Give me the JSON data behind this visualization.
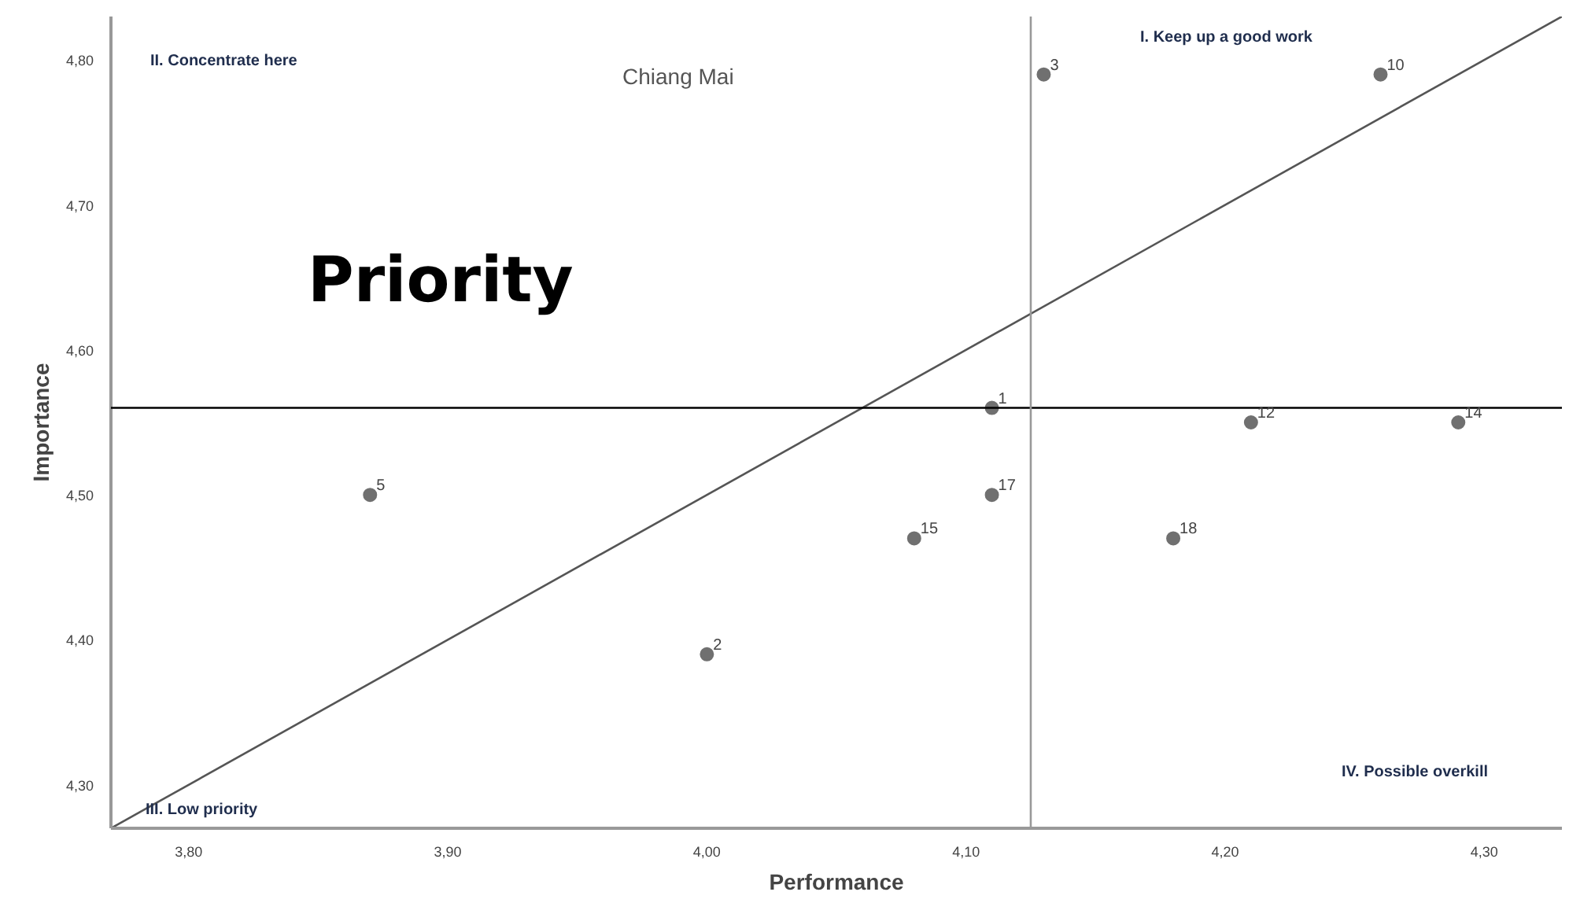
{
  "chart_data": {
    "type": "scatter",
    "title": "Chiang Mai",
    "xlabel": "Performance",
    "ylabel": "Importance",
    "xlim": [
      3.77,
      4.33
    ],
    "ylim": [
      4.27,
      4.83
    ],
    "xticks": [
      {
        "value": 3.8,
        "label": "3,80"
      },
      {
        "value": 3.9,
        "label": "3,90"
      },
      {
        "value": 4.0,
        "label": "4,00"
      },
      {
        "value": 4.1,
        "label": "4,10"
      },
      {
        "value": 4.2,
        "label": "4,20"
      },
      {
        "value": 4.3,
        "label": "4,30"
      }
    ],
    "yticks": [
      {
        "value": 4.3,
        "label": "4,30"
      },
      {
        "value": 4.4,
        "label": "4,40"
      },
      {
        "value": 4.5,
        "label": "4,50"
      },
      {
        "value": 4.6,
        "label": "4,60"
      },
      {
        "value": 4.7,
        "label": "4,70"
      },
      {
        "value": 4.8,
        "label": "4,80"
      }
    ],
    "grid": false,
    "marker": "circle",
    "series": [
      {
        "color": "#707070",
        "x": [
          4.13,
          4.26,
          4.11,
          4.21,
          4.29,
          3.87,
          4.11,
          4.08,
          4.18,
          4.0
        ],
        "values": [
          4.79,
          4.79,
          4.56,
          4.55,
          4.55,
          4.5,
          4.5,
          4.47,
          4.47,
          4.39
        ]
      },
      {
        "type": "line",
        "marker": "none",
        "color": "#555555",
        "x": [
          3.77,
          4.33
        ],
        "values": [
          4.27,
          4.83
        ]
      }
    ],
    "ref_lines": [
      {
        "axis": "y",
        "value": 4.56,
        "color": "#000000"
      },
      {
        "axis": "x",
        "value": 4.125,
        "color": "#999999"
      }
    ],
    "annotations": [
      {
        "text": "3",
        "x": 4.13,
        "y": 4.79
      },
      {
        "text": "10",
        "x": 4.26,
        "y": 4.79
      },
      {
        "text": "1",
        "x": 4.11,
        "y": 4.56
      },
      {
        "text": "12",
        "x": 4.21,
        "y": 4.55
      },
      {
        "text": "14",
        "x": 4.29,
        "y": 4.55
      },
      {
        "text": "5",
        "x": 3.87,
        "y": 4.5
      },
      {
        "text": "17",
        "x": 4.11,
        "y": 4.5
      },
      {
        "text": "15",
        "x": 4.08,
        "y": 4.47
      },
      {
        "text": "18",
        "x": 4.18,
        "y": 4.47
      },
      {
        "text": "2",
        "x": 4.0,
        "y": 4.39
      },
      "Priority",
      "II. Concentrate here",
      "I. Keep up a good work",
      "III. Low priority",
      "IV. Possible overkill"
    ]
  }
}
